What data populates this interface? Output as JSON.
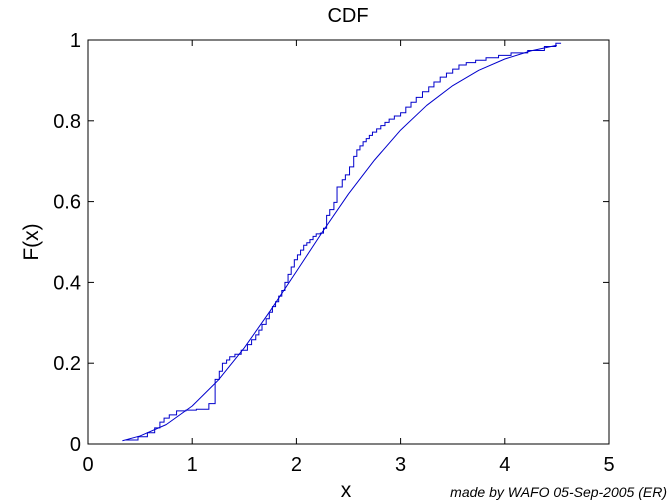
{
  "chart_data": {
    "type": "line",
    "title": "CDF",
    "xlabel": "x",
    "ylabel": "F(x)",
    "xlim": [
      0,
      5
    ],
    "ylim": [
      0,
      1
    ],
    "xticks": [
      0,
      1,
      2,
      3,
      4,
      5
    ],
    "yticks": [
      0,
      0.2,
      0.4,
      0.6,
      0.8,
      1
    ],
    "xtick_labels": [
      "0",
      "1",
      "2",
      "3",
      "4",
      "5"
    ],
    "ytick_labels": [
      "0",
      "0.2",
      "0.4",
      "0.6",
      "0.8",
      "1"
    ],
    "grid": false,
    "legend": "none",
    "series": [
      {
        "kind": "empirical-step",
        "color": "#0000cc",
        "x": [
          0.36,
          0.48,
          0.57,
          0.64,
          0.69,
          0.73,
          0.78,
          0.85,
          0.94,
          1.04,
          1.16,
          1.22,
          1.26,
          1.29,
          1.33,
          1.36,
          1.41,
          1.47,
          1.53,
          1.57,
          1.61,
          1.64,
          1.67,
          1.71,
          1.74,
          1.77,
          1.8,
          1.83,
          1.86,
          1.89,
          1.92,
          1.95,
          1.98,
          2.01,
          2.04,
          2.07,
          2.1,
          2.13,
          2.16,
          2.19,
          2.23,
          2.26,
          2.29,
          2.32,
          2.36,
          2.39,
          2.44,
          2.47,
          2.51,
          2.55,
          2.58,
          2.61,
          2.64,
          2.67,
          2.7,
          2.73,
          2.77,
          2.81,
          2.85,
          2.89,
          2.94,
          3.0,
          3.05,
          3.1,
          3.15,
          3.21,
          3.27,
          3.32,
          3.38,
          3.44,
          3.5,
          3.56,
          3.63,
          3.72,
          3.82,
          3.94,
          4.06,
          4.22,
          4.38,
          4.49
        ],
        "y": [
          0.01,
          0.018,
          0.028,
          0.04,
          0.054,
          0.064,
          0.072,
          0.082,
          0.084,
          0.086,
          0.1,
          0.16,
          0.18,
          0.2,
          0.208,
          0.216,
          0.222,
          0.232,
          0.246,
          0.258,
          0.27,
          0.282,
          0.296,
          0.31,
          0.326,
          0.34,
          0.352,
          0.366,
          0.38,
          0.4,
          0.42,
          0.438,
          0.456,
          0.468,
          0.48,
          0.492,
          0.498,
          0.506,
          0.514,
          0.52,
          0.522,
          0.534,
          0.566,
          0.58,
          0.598,
          0.636,
          0.654,
          0.666,
          0.686,
          0.712,
          0.728,
          0.738,
          0.748,
          0.756,
          0.764,
          0.772,
          0.78,
          0.788,
          0.796,
          0.804,
          0.812,
          0.82,
          0.834,
          0.846,
          0.858,
          0.872,
          0.884,
          0.896,
          0.908,
          0.918,
          0.928,
          0.938,
          0.944,
          0.95,
          0.956,
          0.962,
          0.968,
          0.974,
          0.984,
          0.992
        ]
      },
      {
        "kind": "fitted-cdf",
        "color": "#0000cc",
        "x": [
          0.33,
          0.5,
          0.75,
          1.0,
          1.25,
          1.5,
          1.75,
          2.0,
          2.25,
          2.5,
          2.75,
          3.0,
          3.25,
          3.5,
          3.75,
          4.0,
          4.25,
          4.5
        ],
        "y": [
          0.008,
          0.02,
          0.048,
          0.094,
          0.158,
          0.238,
          0.33,
          0.427,
          0.525,
          0.619,
          0.703,
          0.777,
          0.838,
          0.887,
          0.925,
          0.953,
          0.973,
          0.987
        ]
      }
    ]
  },
  "credit": "made by WAFO 05-Sep-2005 (ER)"
}
